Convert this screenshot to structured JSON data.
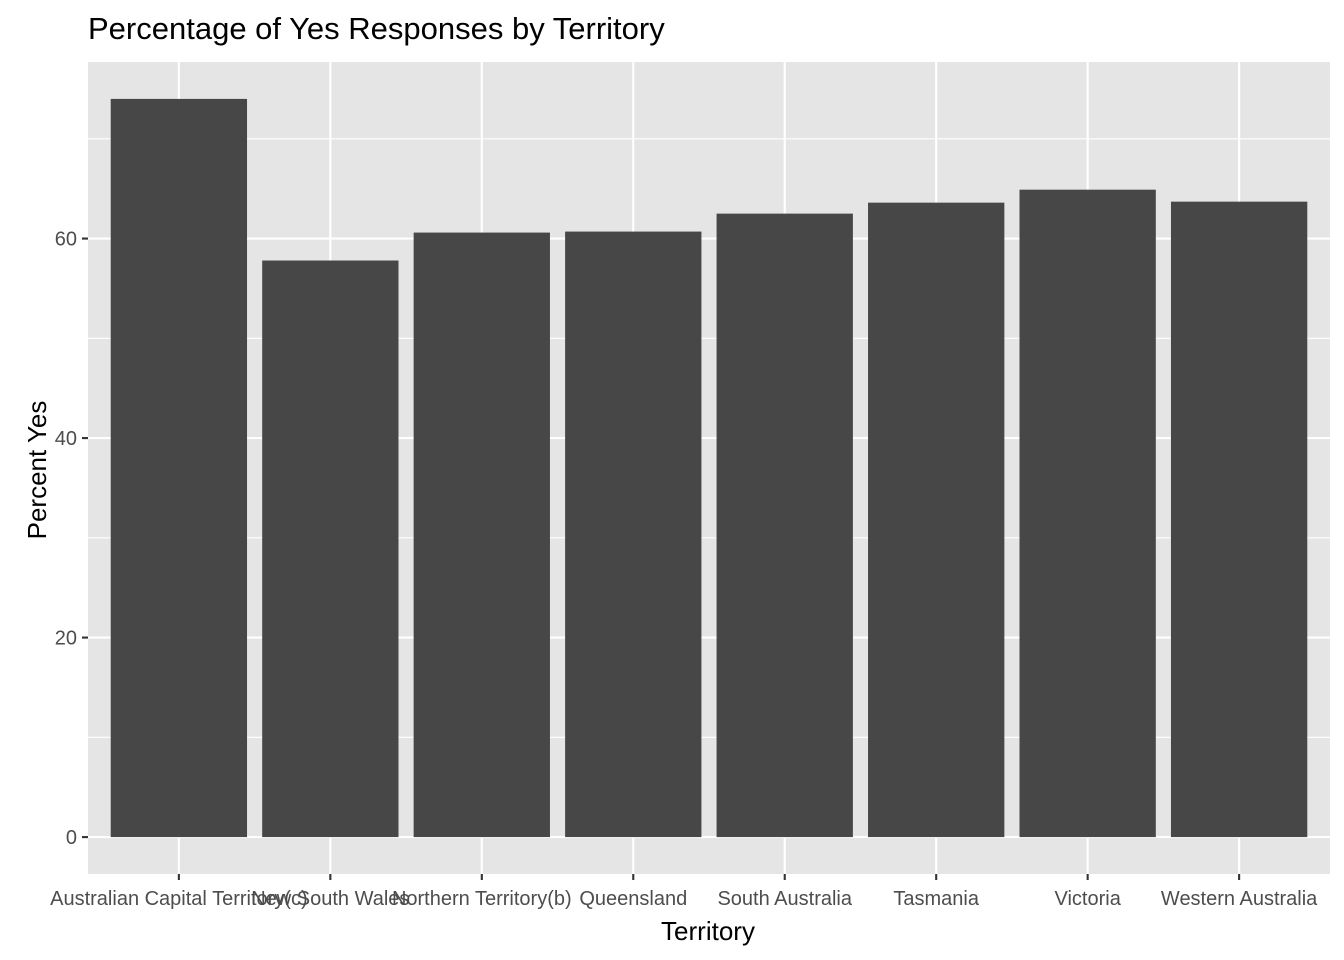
{
  "chart_data": {
    "type": "bar",
    "title": "Percentage of Yes Responses by Territory",
    "xlabel": "Territory",
    "ylabel": "Percent Yes",
    "categories": [
      "Australian Capital Territory(c)",
      "New South Wales",
      "Northern Territory(b)",
      "Queensland",
      "South Australia",
      "Tasmania",
      "Victoria",
      "Western Australia"
    ],
    "values": [
      74.0,
      57.8,
      60.6,
      60.7,
      62.5,
      63.6,
      64.9,
      63.7
    ],
    "ylim": [
      -3.7,
      77.7
    ],
    "yticks": [
      0,
      20,
      40,
      60
    ],
    "ytick_labels": [
      "0",
      "20",
      "40",
      "60"
    ],
    "yminor": [
      10,
      30,
      50,
      70
    ],
    "grid": true,
    "legend": "none",
    "colors": {
      "bar": "#474747",
      "panel": "#e5e5e5",
      "grid": "#ffffff"
    }
  }
}
